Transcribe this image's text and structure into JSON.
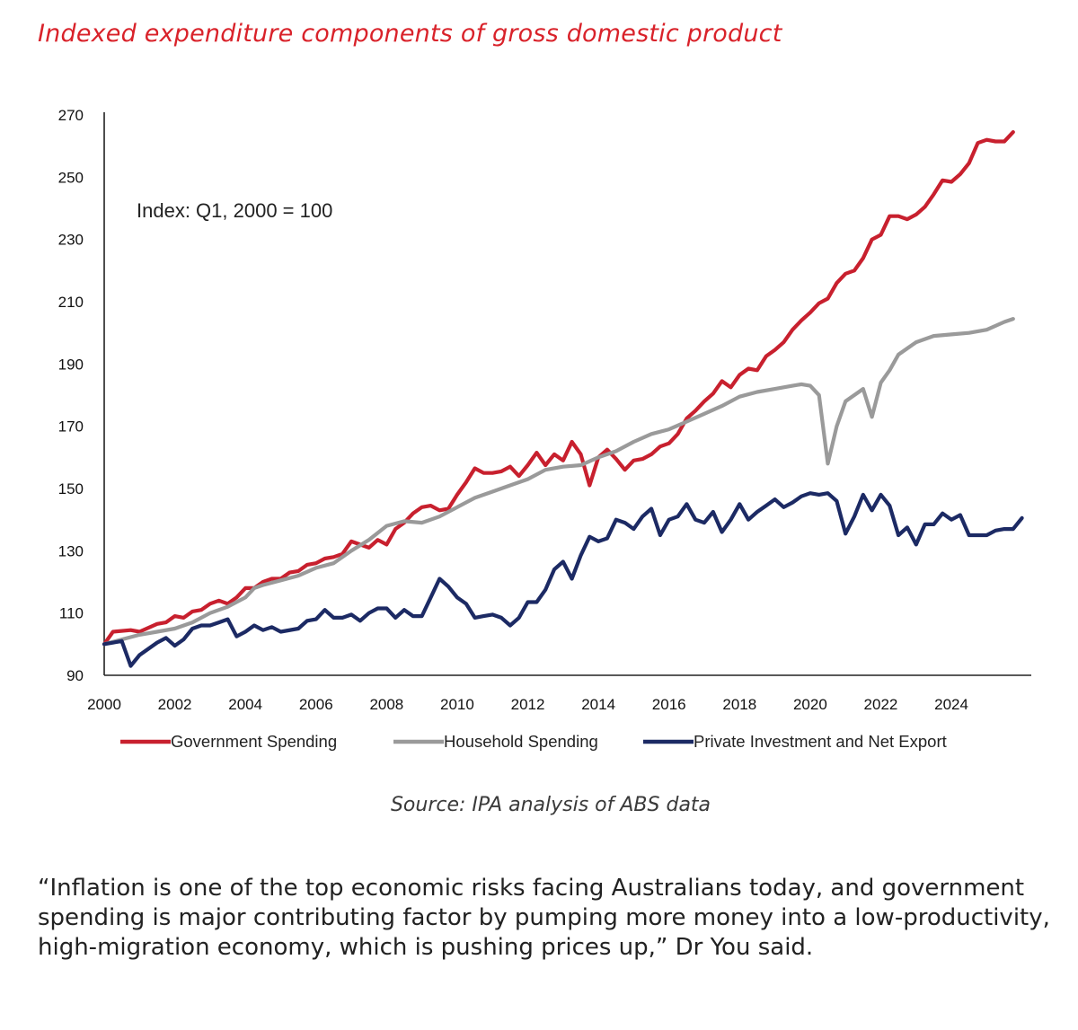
{
  "title": "Indexed expenditure components of gross domestic product",
  "source": {
    "label": "Source:",
    "text": " IPA analysis of ABS data"
  },
  "quote": "“Inflation is one of the top economic risks facing Australians today, and government spending is major contributing factor by pumping more money into a low-productivity, high-migration economy, which is pushing prices up,” Dr You said.",
  "chart_data": {
    "type": "line",
    "annotation": "Index: Q1, 2000 = 100",
    "xlim": [
      2000,
      2025.5
    ],
    "ylim": [
      90,
      270
    ],
    "x_ticks": [
      "2000",
      "2002",
      "2004",
      "2006",
      "2008",
      "2010",
      "2012",
      "2014",
      "2016",
      "2018",
      "2020",
      "2022",
      "2024"
    ],
    "y_ticks": [
      "90",
      "110",
      "130",
      "150",
      "170",
      "190",
      "210",
      "230",
      "250",
      "270"
    ],
    "grid": false,
    "legend_position": "bottom",
    "series": [
      {
        "name": "Government Spending",
        "color": "#c8202e",
        "points": [
          [
            2000,
            100
          ],
          [
            2000.25,
            104
          ],
          [
            2000.75,
            104.5
          ],
          [
            2001,
            104
          ],
          [
            2001.5,
            106.5
          ],
          [
            2001.75,
            107
          ],
          [
            2002,
            109
          ],
          [
            2002.25,
            108.5
          ],
          [
            2002.5,
            110.5
          ],
          [
            2002.75,
            111
          ],
          [
            2003,
            113
          ],
          [
            2003.25,
            114
          ],
          [
            2003.5,
            113
          ],
          [
            2003.75,
            115
          ],
          [
            2004,
            118
          ],
          [
            2004.25,
            118
          ],
          [
            2004.5,
            120
          ],
          [
            2004.75,
            121
          ],
          [
            2005,
            121
          ],
          [
            2005.25,
            123
          ],
          [
            2005.5,
            123.5
          ],
          [
            2005.75,
            125.5
          ],
          [
            2006,
            126
          ],
          [
            2006.25,
            127.5
          ],
          [
            2006.5,
            128
          ],
          [
            2006.75,
            129
          ],
          [
            2007,
            133
          ],
          [
            2007.25,
            132
          ],
          [
            2007.5,
            131
          ],
          [
            2007.75,
            133.5
          ],
          [
            2008,
            132
          ],
          [
            2008.25,
            137
          ],
          [
            2008.5,
            139
          ],
          [
            2008.75,
            142
          ],
          [
            2009,
            144
          ],
          [
            2009.25,
            144.5
          ],
          [
            2009.5,
            143
          ],
          [
            2009.75,
            143.5
          ],
          [
            2010,
            148
          ],
          [
            2010.25,
            152
          ],
          [
            2010.5,
            156.5
          ],
          [
            2010.75,
            155
          ],
          [
            2011,
            155
          ],
          [
            2011.25,
            155.5
          ],
          [
            2011.5,
            157
          ],
          [
            2011.75,
            154
          ],
          [
            2012,
            157.5
          ],
          [
            2012.25,
            161.5
          ],
          [
            2012.5,
            157.5
          ],
          [
            2012.75,
            161
          ],
          [
            2013,
            159
          ],
          [
            2013.25,
            165
          ],
          [
            2013.5,
            161
          ],
          [
            2013.75,
            151
          ],
          [
            2014,
            160
          ],
          [
            2014.25,
            162.5
          ],
          [
            2014.5,
            159.5
          ],
          [
            2014.75,
            156
          ],
          [
            2015,
            159
          ],
          [
            2015.25,
            159.5
          ],
          [
            2015.5,
            161
          ],
          [
            2015.75,
            163.5
          ],
          [
            2016,
            164.5
          ],
          [
            2016.25,
            167.5
          ],
          [
            2016.5,
            172.5
          ],
          [
            2016.75,
            175
          ],
          [
            2017,
            178
          ],
          [
            2017.25,
            180.5
          ],
          [
            2017.5,
            184.5
          ],
          [
            2017.75,
            182.5
          ],
          [
            2018,
            186.5
          ],
          [
            2018.25,
            188.5
          ],
          [
            2018.5,
            188
          ],
          [
            2018.75,
            192.5
          ],
          [
            2019,
            194.5
          ],
          [
            2019.25,
            197
          ],
          [
            2019.5,
            201
          ],
          [
            2019.75,
            204
          ],
          [
            2020,
            206.5
          ],
          [
            2020.25,
            209.5
          ],
          [
            2020.5,
            211
          ],
          [
            2020.75,
            216
          ],
          [
            2021,
            219
          ],
          [
            2021.25,
            220
          ],
          [
            2021.5,
            224
          ],
          [
            2021.75,
            230
          ],
          [
            2022,
            231.5
          ],
          [
            2022.25,
            237.5
          ],
          [
            2022.5,
            237.5
          ],
          [
            2022.75,
            236.5
          ],
          [
            2023,
            238
          ],
          [
            2023.25,
            240.5
          ],
          [
            2023.5,
            244.5
          ],
          [
            2023.75,
            249
          ],
          [
            2024,
            248.5
          ],
          [
            2024.25,
            251
          ],
          [
            2024.5,
            254.5
          ],
          [
            2024.75,
            261
          ],
          [
            2025,
            262
          ],
          [
            2025.25,
            261.5
          ],
          [
            2025.5,
            261.5
          ],
          [
            2025.75,
            264.5
          ]
        ]
      },
      {
        "name": "Household Spending",
        "color": "#9a9a9a",
        "points": [
          [
            2000,
            100
          ],
          [
            2000.5,
            101.5
          ],
          [
            2001,
            103
          ],
          [
            2001.5,
            104
          ],
          [
            2002,
            105
          ],
          [
            2002.5,
            107
          ],
          [
            2003,
            110
          ],
          [
            2003.5,
            112
          ],
          [
            2004,
            115
          ],
          [
            2004.25,
            118
          ],
          [
            2004.5,
            119
          ],
          [
            2005,
            120.5
          ],
          [
            2005.5,
            122
          ],
          [
            2006,
            124.5
          ],
          [
            2006.5,
            126
          ],
          [
            2007,
            130
          ],
          [
            2007.5,
            133.5
          ],
          [
            2008,
            138
          ],
          [
            2008.5,
            139.5
          ],
          [
            2009,
            139
          ],
          [
            2009.5,
            141
          ],
          [
            2010,
            144
          ],
          [
            2010.5,
            147
          ],
          [
            2011,
            149
          ],
          [
            2011.5,
            151
          ],
          [
            2012,
            153
          ],
          [
            2012.5,
            156
          ],
          [
            2013,
            157
          ],
          [
            2013.5,
            157.5
          ],
          [
            2014,
            160
          ],
          [
            2014.5,
            162
          ],
          [
            2015,
            165
          ],
          [
            2015.5,
            167.5
          ],
          [
            2016,
            169
          ],
          [
            2016.5,
            171.5
          ],
          [
            2017,
            174
          ],
          [
            2017.5,
            176.5
          ],
          [
            2018,
            179.5
          ],
          [
            2018.5,
            181
          ],
          [
            2019,
            182
          ],
          [
            2019.5,
            183
          ],
          [
            2019.75,
            183.5
          ],
          [
            2020,
            183
          ],
          [
            2020.25,
            180
          ],
          [
            2020.5,
            158
          ],
          [
            2020.75,
            170
          ],
          [
            2021,
            178
          ],
          [
            2021.25,
            180
          ],
          [
            2021.5,
            182
          ],
          [
            2021.75,
            173
          ],
          [
            2022,
            184
          ],
          [
            2022.25,
            188
          ],
          [
            2022.5,
            193
          ],
          [
            2022.75,
            195
          ],
          [
            2023,
            197
          ],
          [
            2023.5,
            199
          ],
          [
            2024,
            199.5
          ],
          [
            2024.5,
            200
          ],
          [
            2025,
            201
          ],
          [
            2025.5,
            203.5
          ],
          [
            2025.75,
            204.5
          ]
        ]
      },
      {
        "name": "Private Investment and Net Export",
        "color": "#1c2a64",
        "points": [
          [
            2000,
            100
          ],
          [
            2000.5,
            101
          ],
          [
            2000.75,
            93
          ],
          [
            2001,
            96.5
          ],
          [
            2001.5,
            100.5
          ],
          [
            2001.75,
            102
          ],
          [
            2002,
            99.5
          ],
          [
            2002.25,
            101.5
          ],
          [
            2002.5,
            105
          ],
          [
            2002.75,
            106
          ],
          [
            2003,
            106
          ],
          [
            2003.25,
            107
          ],
          [
            2003.5,
            108
          ],
          [
            2003.75,
            102.5
          ],
          [
            2004,
            104
          ],
          [
            2004.25,
            106
          ],
          [
            2004.5,
            104.5
          ],
          [
            2004.75,
            105.5
          ],
          [
            2005,
            104
          ],
          [
            2005.5,
            105
          ],
          [
            2005.75,
            107.5
          ],
          [
            2006,
            108
          ],
          [
            2006.25,
            111
          ],
          [
            2006.5,
            108.5
          ],
          [
            2006.75,
            108.5
          ],
          [
            2007,
            109.5
          ],
          [
            2007.25,
            107.5
          ],
          [
            2007.5,
            110
          ],
          [
            2007.75,
            111.5
          ],
          [
            2008,
            111.5
          ],
          [
            2008.25,
            108.5
          ],
          [
            2008.5,
            111
          ],
          [
            2008.75,
            109
          ],
          [
            2009,
            109
          ],
          [
            2009.25,
            115
          ],
          [
            2009.5,
            121
          ],
          [
            2009.75,
            118.5
          ],
          [
            2010,
            115
          ],
          [
            2010.25,
            113
          ],
          [
            2010.5,
            108.5
          ],
          [
            2010.75,
            109
          ],
          [
            2011,
            109.5
          ],
          [
            2011.25,
            108.5
          ],
          [
            2011.5,
            106
          ],
          [
            2011.75,
            108.5
          ],
          [
            2012,
            113.5
          ],
          [
            2012.25,
            113.5
          ],
          [
            2012.5,
            117.5
          ],
          [
            2012.75,
            124
          ],
          [
            2013,
            126.5
          ],
          [
            2013.25,
            121
          ],
          [
            2013.5,
            128.5
          ],
          [
            2013.75,
            134.5
          ],
          [
            2014,
            133
          ],
          [
            2014.25,
            134
          ],
          [
            2014.5,
            140
          ],
          [
            2014.75,
            139
          ],
          [
            2015,
            137
          ],
          [
            2015.25,
            141
          ],
          [
            2015.5,
            143.5
          ],
          [
            2015.75,
            135
          ],
          [
            2016,
            140
          ],
          [
            2016.25,
            141
          ],
          [
            2016.5,
            145
          ],
          [
            2016.75,
            140
          ],
          [
            2017,
            139
          ],
          [
            2017.25,
            142.5
          ],
          [
            2017.5,
            136
          ],
          [
            2017.75,
            140
          ],
          [
            2018,
            145
          ],
          [
            2018.25,
            140
          ],
          [
            2018.5,
            142.5
          ],
          [
            2018.75,
            144.5
          ],
          [
            2019,
            146.5
          ],
          [
            2019.25,
            144
          ],
          [
            2019.5,
            145.5
          ],
          [
            2019.75,
            147.5
          ],
          [
            2020,
            148.5
          ],
          [
            2020.25,
            148
          ],
          [
            2020.5,
            148.5
          ],
          [
            2020.75,
            146
          ],
          [
            2021,
            135.5
          ],
          [
            2021.25,
            141
          ],
          [
            2021.5,
            148
          ],
          [
            2021.75,
            143
          ],
          [
            2022,
            148
          ],
          [
            2022.25,
            144.5
          ],
          [
            2022.5,
            135
          ],
          [
            2022.75,
            137.5
          ],
          [
            2023,
            132
          ],
          [
            2023.25,
            138.5
          ],
          [
            2023.5,
            138.5
          ],
          [
            2023.75,
            142
          ],
          [
            2024,
            140
          ],
          [
            2024.25,
            141.5
          ],
          [
            2024.5,
            135
          ],
          [
            2024.75,
            135
          ],
          [
            2025,
            135
          ],
          [
            2025.25,
            136.5
          ],
          [
            2025.5,
            137
          ],
          [
            2025.75,
            137
          ],
          [
            2026,
            140.5
          ]
        ]
      }
    ]
  }
}
